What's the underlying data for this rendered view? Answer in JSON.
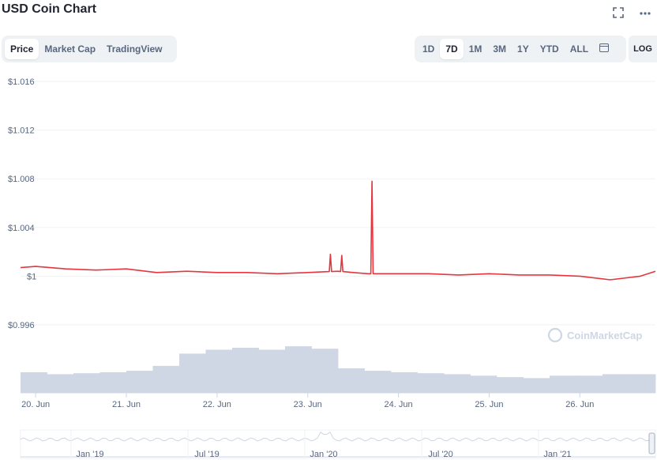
{
  "title": "USD Coin Chart",
  "icons": {
    "fullscreen": "fullscreen-icon",
    "more": "more-icon",
    "calendar": "calendar-icon",
    "watermark": "coinmarketcap-logo"
  },
  "tabs": [
    {
      "label": "Price",
      "active": true
    },
    {
      "label": "Market Cap",
      "active": false
    },
    {
      "label": "TradingView",
      "active": false
    }
  ],
  "ranges": [
    {
      "label": "1D",
      "active": false
    },
    {
      "label": "7D",
      "active": true
    },
    {
      "label": "1M",
      "active": false
    },
    {
      "label": "3M",
      "active": false
    },
    {
      "label": "1Y",
      "active": false
    },
    {
      "label": "YTD",
      "active": false
    },
    {
      "label": "ALL",
      "active": false
    }
  ],
  "log_label": "LOG",
  "watermark": "CoinMarketCap",
  "colors": {
    "price_line": "#e5363f",
    "volume_bars": "#cfd6e4",
    "grid": "#eff2f5",
    "axis_text": "#58667e"
  },
  "chart_data": {
    "type": "line",
    "y_ticks": [
      "$1.016",
      "$1.012",
      "$1.008",
      "$1.004",
      "$1",
      "$0.996"
    ],
    "ylim": [
      0.996,
      1.016
    ],
    "x_ticks": [
      "20. Jun",
      "21. Jun",
      "22. Jun",
      "23. Jun",
      "24. Jun",
      "25. Jun",
      "26. Jun"
    ],
    "x": [
      "19 Jun 20:00",
      "20 Jun 00:00",
      "20 Jun 08:00",
      "20 Jun 16:00",
      "21 Jun 00:00",
      "21 Jun 08:00",
      "21 Jun 16:00",
      "22 Jun 00:00",
      "22 Jun 08:00",
      "22 Jun 16:00",
      "23 Jun 00:00",
      "23 Jun 08:00",
      "23 Jun 12:00",
      "23 Jun 16:00",
      "24 Jun 00:00",
      "24 Jun 08:00",
      "24 Jun 16:00",
      "25 Jun 00:00",
      "25 Jun 08:00",
      "25 Jun 16:00",
      "26 Jun 00:00",
      "26 Jun 08:00",
      "26 Jun 16:00",
      "26 Jun 20:00"
    ],
    "series": [
      {
        "values": [
          1.0007,
          1.0008,
          1.0006,
          1.0005,
          1.0006,
          1.0003,
          1.0004,
          1.0003,
          1.0003,
          1.0002,
          1.0003,
          1.0004,
          1.0003,
          1.0002,
          1.0002,
          1.0002,
          1.0001,
          1.0002,
          1.0001,
          1.0001,
          1.0,
          0.9997,
          1.0,
          1.0004
        ],
        "spikes": [
          {
            "x": "23 Jun 06:00",
            "value": 1.0018
          },
          {
            "x": "23 Jun 09:00",
            "value": 1.0017
          },
          {
            "x": "23 Jun 17:00",
            "value": 1.0078
          }
        ]
      }
    ],
    "volume_relative": [
      0.42,
      0.38,
      0.4,
      0.42,
      0.45,
      0.55,
      0.8,
      0.88,
      0.92,
      0.88,
      0.95,
      0.9,
      0.5,
      0.45,
      0.42,
      0.4,
      0.38,
      0.35,
      0.32,
      0.3,
      0.35,
      0.35,
      0.38,
      0.38
    ],
    "navigator": {
      "x_ticks": [
        "Jan '19",
        "Jul '19",
        "Jan '20",
        "Jul '20",
        "Jan '21"
      ]
    }
  }
}
